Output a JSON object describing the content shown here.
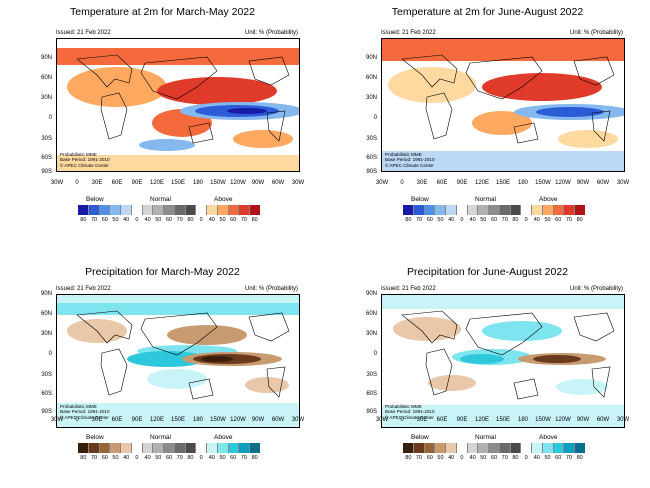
{
  "issued": "Issued: 21 Feb 2022",
  "unit": "Unit: % (Probability)",
  "footnote": [
    "Probabilistic MME",
    "Base Period: 1991-2010",
    "© APEC Climate Center"
  ],
  "lat_labels": [
    "90N",
    "60N",
    "30N",
    "0",
    "30S",
    "60S",
    "90S"
  ],
  "lon_labels": [
    "30W",
    "0",
    "30E",
    "60E",
    "90E",
    "120E",
    "150E",
    "180",
    "150W",
    "120W",
    "90W",
    "60W",
    "30W"
  ],
  "legend_heads": {
    "below": "Below",
    "normal": "Normal",
    "above": "Above"
  },
  "legend_ticks": [
    "80",
    "70",
    "60",
    "50",
    "40",
    "0",
    "40",
    "50",
    "60",
    "70",
    "80",
    "0",
    "40",
    "50",
    "60",
    "70",
    "80"
  ],
  "temp_colors": [
    "#1a1aa8",
    "#2b5cd6",
    "#4f8fe8",
    "#86b8f0",
    "#bcd8f5",
    "#ffffff",
    "#d4d4d4",
    "#b0b0b0",
    "#8c8c8c",
    "#6a6a6a",
    "#4a4a4a",
    "#ffffff",
    "#ffd9a0",
    "#ffa860",
    "#f56a3c",
    "#e03a2a",
    "#b0121a"
  ],
  "prec_colors": [
    "#3a1e0c",
    "#6a3a1e",
    "#9a6238",
    "#c89a70",
    "#e8c8a8",
    "#ffffff",
    "#d4d4d4",
    "#b0b0b0",
    "#8c8c8c",
    "#6a6a6a",
    "#4a4a4a",
    "#ffffff",
    "#c8f4f8",
    "#7ee4ef",
    "#2ec8dc",
    "#0ca0be",
    "#0a6f8e"
  ],
  "panels": [
    {
      "title": "Temperature at 2m for March-May 2022",
      "type": "temp"
    },
    {
      "title": "Temperature at 2m for June-August 2022",
      "type": "temp"
    },
    {
      "title": "Precipitation for March-May 2022",
      "type": "prec"
    },
    {
      "title": "Precipitation for June-August 2022",
      "type": "prec"
    }
  ]
}
